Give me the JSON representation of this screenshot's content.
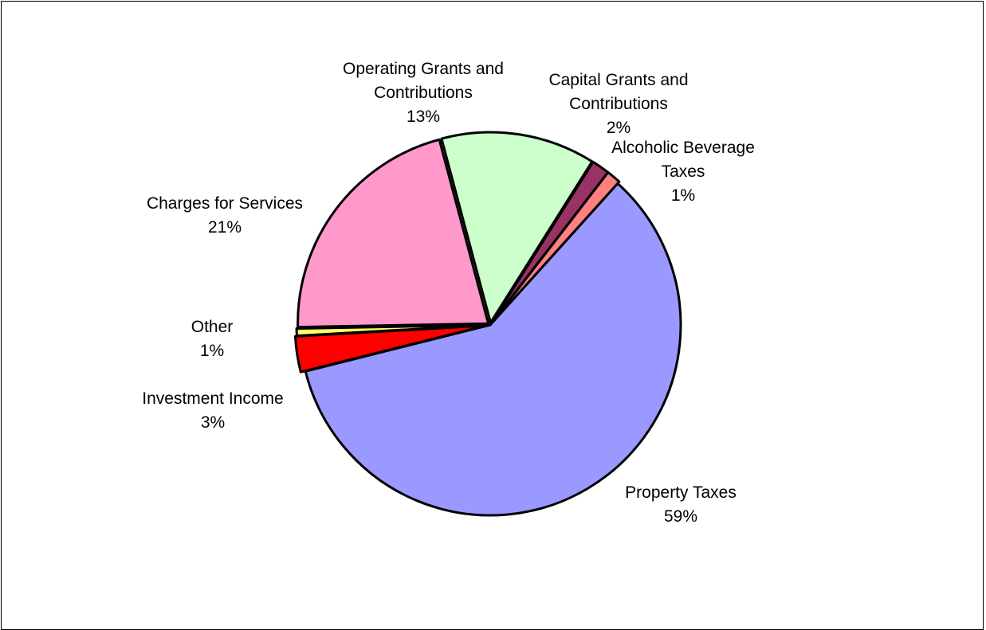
{
  "chart_data": {
    "type": "pie",
    "title": "",
    "slices": [
      {
        "label": "Property Taxes",
        "value": 59,
        "percent_label": "59%",
        "color": "#9999FF"
      },
      {
        "label": "Investment Income",
        "value": 3,
        "percent_label": "3%",
        "color": "#FF0000"
      },
      {
        "label": "Other",
        "value": 0.6,
        "percent_label": "1%",
        "color": "#FFFF66"
      },
      {
        "label": "Charges for Services",
        "value": 21,
        "percent_label": "21%",
        "color": "#FF99CC"
      },
      {
        "label": "Operating Grants and Contributions",
        "value": 13,
        "percent_label": "13%",
        "color": "#CCFFCC"
      },
      {
        "label": "Capital Grants and Contributions",
        "value": 1.5,
        "percent_label": "2%",
        "color": "#993366"
      },
      {
        "label": "Alcoholic Beverage Taxes",
        "value": 1.2,
        "percent_label": "1%",
        "color": "#FF8080"
      }
    ],
    "legend": "none",
    "label_position": "outside"
  }
}
